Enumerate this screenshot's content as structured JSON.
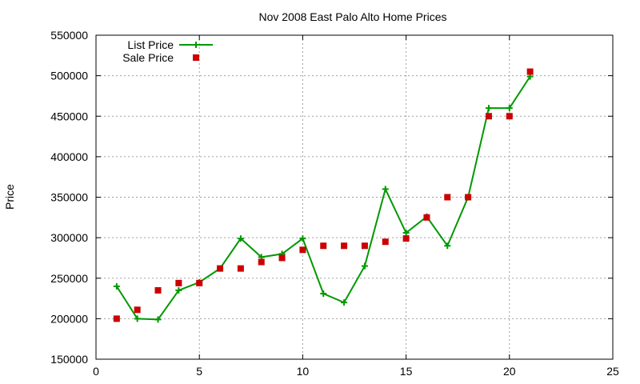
{
  "chart_data": {
    "type": "line",
    "title": "Nov 2008 East Palo Alto Home Prices",
    "xlabel": "",
    "ylabel": "Price",
    "xlim": [
      0,
      25
    ],
    "ylim": [
      150000,
      550000
    ],
    "x_ticks": [
      0,
      5,
      10,
      15,
      20,
      25
    ],
    "y_ticks": [
      150000,
      200000,
      250000,
      300000,
      350000,
      400000,
      450000,
      500000,
      550000
    ],
    "grid": true,
    "legend_position": "top-left",
    "series": [
      {
        "name": "List Price",
        "style": "line+cross",
        "color": "#009900",
        "points": [
          [
            1,
            240000
          ],
          [
            2,
            200000
          ],
          [
            3,
            199000
          ],
          [
            4,
            235000
          ],
          [
            5,
            245000
          ],
          [
            6,
            262000
          ],
          [
            7,
            299000
          ],
          [
            8,
            276000
          ],
          [
            9,
            280000
          ],
          [
            10,
            299000
          ],
          [
            11,
            231000
          ],
          [
            12,
            220000
          ],
          [
            13,
            265000
          ],
          [
            14,
            360000
          ],
          [
            15,
            306000
          ],
          [
            16,
            326000
          ],
          [
            17,
            290000
          ],
          [
            18,
            350000
          ],
          [
            19,
            460000
          ],
          [
            20,
            460000
          ],
          [
            21,
            499000
          ]
        ]
      },
      {
        "name": "Sale Price",
        "style": "square",
        "color": "#cc0000",
        "points": [
          [
            1,
            200000
          ],
          [
            2,
            211000
          ],
          [
            3,
            235000
          ],
          [
            4,
            244000
          ],
          [
            5,
            244000
          ],
          [
            6,
            262000
          ],
          [
            7,
            262000
          ],
          [
            8,
            270000
          ],
          [
            9,
            275000
          ],
          [
            10,
            285000
          ],
          [
            11,
            290000
          ],
          [
            12,
            290000
          ],
          [
            13,
            290000
          ],
          [
            14,
            295000
          ],
          [
            15,
            299000
          ],
          [
            16,
            325000
          ],
          [
            17,
            350000
          ],
          [
            18,
            350000
          ],
          [
            19,
            450000
          ],
          [
            20,
            450000
          ],
          [
            21,
            505000
          ]
        ]
      }
    ]
  }
}
